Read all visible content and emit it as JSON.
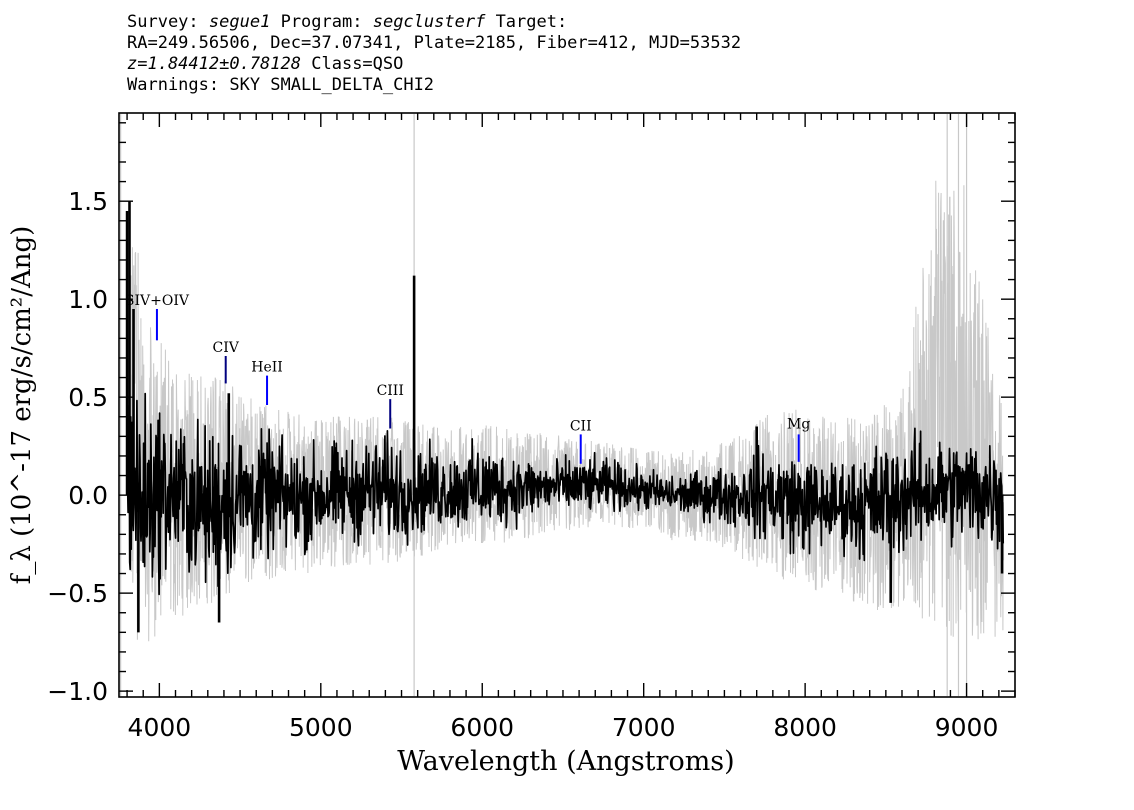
{
  "header": {
    "line1": {
      "survey_label": "Survey:",
      "survey": "segue1",
      "program_label": "Program:",
      "program": "segclusterf",
      "target_label": "Target:"
    },
    "line2": "RA=249.56506, Dec=37.07341, Plate=2185, Fiber=412, MJD=53532",
    "line3": {
      "redshift": "z=1.84412±0.78128",
      "class": "Class=QSO"
    },
    "line4": "Warnings: SKY SMALL_DELTA_CHI2"
  },
  "chart_data": {
    "type": "line",
    "title": "",
    "xlabel": "Wavelength (Angstroms)",
    "ylabel": "f_λ (10^-17 erg/s/cm²/Ang)",
    "xlim": [
      3750,
      9300
    ],
    "ylim": [
      -1.03,
      1.95
    ],
    "xticks": [
      4000,
      5000,
      6000,
      7000,
      8000,
      9000
    ],
    "xtick_labels": [
      "4000",
      "5000",
      "6000",
      "7000",
      "8000",
      "9000"
    ],
    "yticks": [
      -1.0,
      -0.5,
      0.0,
      0.5,
      1.0,
      1.5
    ],
    "ytick_labels": [
      "−1.0",
      "−0.5",
      "0.0",
      "0.5",
      "1.0",
      "1.5"
    ],
    "grid": false,
    "series": [
      {
        "role": "flux",
        "color": "#000000",
        "envelope": {
          "x": [
            3800,
            3900,
            4000,
            4100,
            4200,
            4300,
            4400,
            4500,
            4600,
            4700,
            4800,
            5000,
            5200,
            5400,
            5600,
            5800,
            6000,
            6200,
            6400,
            6600,
            6800,
            7000,
            7200,
            7400,
            7600,
            7800,
            8000,
            8200,
            8400,
            8600,
            8800,
            9000,
            9200
          ],
          "y_min": [
            -0.55,
            -0.65,
            -0.5,
            -0.45,
            -0.5,
            -0.55,
            -0.55,
            -0.4,
            -0.4,
            -0.35,
            -0.35,
            -0.3,
            -0.28,
            -0.3,
            -0.25,
            -0.2,
            -0.22,
            -0.18,
            -0.12,
            -0.12,
            -0.1,
            -0.1,
            -0.12,
            -0.15,
            -0.2,
            -0.3,
            -0.35,
            -0.3,
            -0.4,
            -0.35,
            -0.3,
            -0.3,
            -0.35
          ],
          "y_max": [
            0.8,
            0.6,
            0.55,
            0.45,
            0.45,
            0.4,
            0.5,
            0.4,
            0.35,
            0.35,
            0.3,
            0.3,
            0.32,
            0.35,
            0.3,
            0.25,
            0.3,
            0.25,
            0.2,
            0.22,
            0.2,
            0.15,
            0.12,
            0.15,
            0.2,
            0.3,
            0.25,
            0.2,
            0.3,
            0.35,
            0.35,
            0.35,
            0.4
          ]
        },
        "spikes": [
          {
            "x": 3815,
            "y": 1.5
          },
          {
            "x": 3800,
            "y": 1.45
          },
          {
            "x": 3840,
            "y": 0.95
          },
          {
            "x": 4430,
            "y": 0.52
          },
          {
            "x": 5578,
            "y": 1.12
          },
          {
            "x": 3870,
            "y": -0.7
          },
          {
            "x": 4370,
            "y": -0.65
          },
          {
            "x": 7700,
            "y": 0.35
          },
          {
            "x": 8530,
            "y": -0.55
          },
          {
            "x": 9220,
            "y": -0.4
          }
        ]
      },
      {
        "role": "error",
        "color": "#c8c8c8",
        "envelope": {
          "x": [
            3800,
            3900,
            4000,
            4100,
            4200,
            4300,
            4400,
            4500,
            4600,
            4700,
            4800,
            5000,
            5200,
            5400,
            5600,
            5800,
            6000,
            6200,
            6400,
            6600,
            6800,
            7000,
            7200,
            7400,
            7600,
            7800,
            8000,
            8200,
            8400,
            8600,
            8800,
            9000,
            9200
          ],
          "y_min": [
            -1.03,
            -1.0,
            -0.9,
            -0.8,
            -0.75,
            -0.7,
            -0.75,
            -0.6,
            -0.55,
            -0.55,
            -0.5,
            -0.5,
            -0.45,
            -0.45,
            -0.4,
            -0.35,
            -0.35,
            -0.3,
            -0.28,
            -0.25,
            -0.25,
            -0.22,
            -0.3,
            -0.3,
            -0.4,
            -0.55,
            -0.6,
            -0.6,
            -0.75,
            -0.7,
            -1.0,
            -1.03,
            -0.9
          ],
          "y_max": [
            1.9,
            1.3,
            1.0,
            0.85,
            0.8,
            0.75,
            0.75,
            0.65,
            0.6,
            0.55,
            0.55,
            0.5,
            0.5,
            0.5,
            0.45,
            0.42,
            0.45,
            0.4,
            0.38,
            0.35,
            0.32,
            0.28,
            0.28,
            0.3,
            0.4,
            0.55,
            0.55,
            0.5,
            0.55,
            0.65,
            1.9,
            1.9,
            0.7
          ]
        },
        "spikes": [
          {
            "x": 3760,
            "y": 1.95
          },
          {
            "x": 5578,
            "y": 1.95
          },
          {
            "x": 8880,
            "y": 1.95
          },
          {
            "x": 8950,
            "y": 1.95
          },
          {
            "x": 9000,
            "y": 1.95
          }
        ]
      }
    ],
    "line_markers": [
      {
        "label": "SIV+OIV",
        "x": 3985,
        "y_bottom": 0.79,
        "y_top": 0.95,
        "label_y": 0.97,
        "color": "#0000ff"
      },
      {
        "label": "CIV",
        "x": 4411,
        "y_bottom": 0.57,
        "y_top": 0.71,
        "label_y": 0.73,
        "color": "#000080"
      },
      {
        "label": "HeII",
        "x": 4667,
        "y_bottom": 0.46,
        "y_top": 0.61,
        "label_y": 0.63,
        "color": "#0000ff"
      },
      {
        "label": "CIII",
        "x": 5430,
        "y_bottom": 0.34,
        "y_top": 0.49,
        "label_y": 0.51,
        "color": "#000080"
      },
      {
        "label": "CII",
        "x": 6610,
        "y_bottom": 0.16,
        "y_top": 0.31,
        "label_y": 0.33,
        "color": "#0000ff"
      },
      {
        "label": "Mg",
        "x": 7960,
        "y_bottom": 0.17,
        "y_top": 0.31,
        "label_y": 0.34,
        "color": "#0000ff"
      }
    ]
  }
}
